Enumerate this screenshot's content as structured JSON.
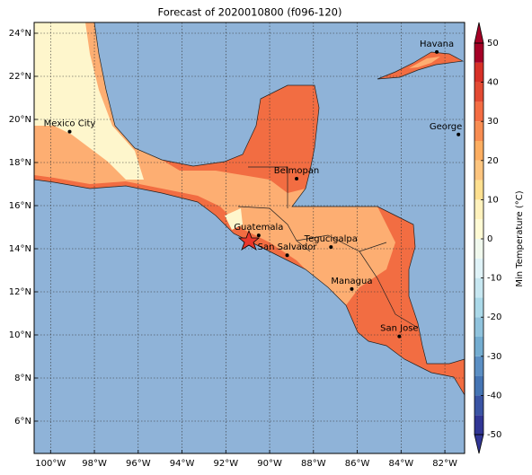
{
  "title": "Forecast of 2020010800 (f096-120)",
  "map": {
    "xlim": [
      -100.75,
      -81.1
    ],
    "ylim": [
      4.5,
      24.5
    ],
    "xticks": [
      {
        "value": -100,
        "label": "100°W"
      },
      {
        "value": -98,
        "label": "98°W"
      },
      {
        "value": -96,
        "label": "96°W"
      },
      {
        "value": -94,
        "label": "94°W"
      },
      {
        "value": -92,
        "label": "92°W"
      },
      {
        "value": -90,
        "label": "90°W"
      },
      {
        "value": -88,
        "label": "88°W"
      },
      {
        "value": -86,
        "label": "86°W"
      },
      {
        "value": -84,
        "label": "84°W"
      },
      {
        "value": -82,
        "label": "82°W"
      }
    ],
    "yticks": [
      {
        "value": 6,
        "label": "6°N"
      },
      {
        "value": 8,
        "label": "8°N"
      },
      {
        "value": 10,
        "label": "10°N"
      },
      {
        "value": 12,
        "label": "12°N"
      },
      {
        "value": 14,
        "label": "14°N"
      },
      {
        "value": 16,
        "label": "16°N"
      },
      {
        "value": 18,
        "label": "18°N"
      },
      {
        "value": 20,
        "label": "20°N"
      },
      {
        "value": 22,
        "label": "22°N"
      },
      {
        "value": 24,
        "label": "24°N"
      }
    ],
    "grid": true,
    "cities": [
      {
        "name": "Havana",
        "lon": -82.37,
        "lat": 23.13
      },
      {
        "name": "Mexico City",
        "lon": -99.13,
        "lat": 19.43
      },
      {
        "name": "George Town",
        "lon": -81.38,
        "lat": 19.3
      },
      {
        "name": "Belmopan",
        "lon": -88.77,
        "lat": 17.25
      },
      {
        "name": "Guatemala",
        "lon": -90.5,
        "lat": 14.62
      },
      {
        "name": "Tegucigalpa",
        "lon": -87.2,
        "lat": 14.08
      },
      {
        "name": "San Salvador",
        "lon": -89.2,
        "lat": 13.7
      },
      {
        "name": "Managua",
        "lon": -86.25,
        "lat": 12.13
      },
      {
        "name": "San Jose",
        "lon": -84.08,
        "lat": 9.93
      }
    ]
  },
  "colorbar": {
    "label": "Min Temperature (°C)",
    "lim": [
      -50,
      50
    ],
    "step": 5,
    "ticks": [
      50,
      40,
      30,
      20,
      10,
      0,
      -10,
      -20,
      -30,
      -40,
      -50
    ],
    "colors": [
      "#313695",
      "#3a54a4",
      "#4575b4",
      "#5b8fc4",
      "#74add1",
      "#90c3dd",
      "#abd9e9",
      "#c7e7f1",
      "#e0f3f8",
      "#f1f9ee",
      "#fffbd5",
      "#fff2bd",
      "#fee090",
      "#fdc57f",
      "#fdae61",
      "#f88d52",
      "#f46d43",
      "#e34a33",
      "#d73027",
      "#a50026"
    ]
  }
}
